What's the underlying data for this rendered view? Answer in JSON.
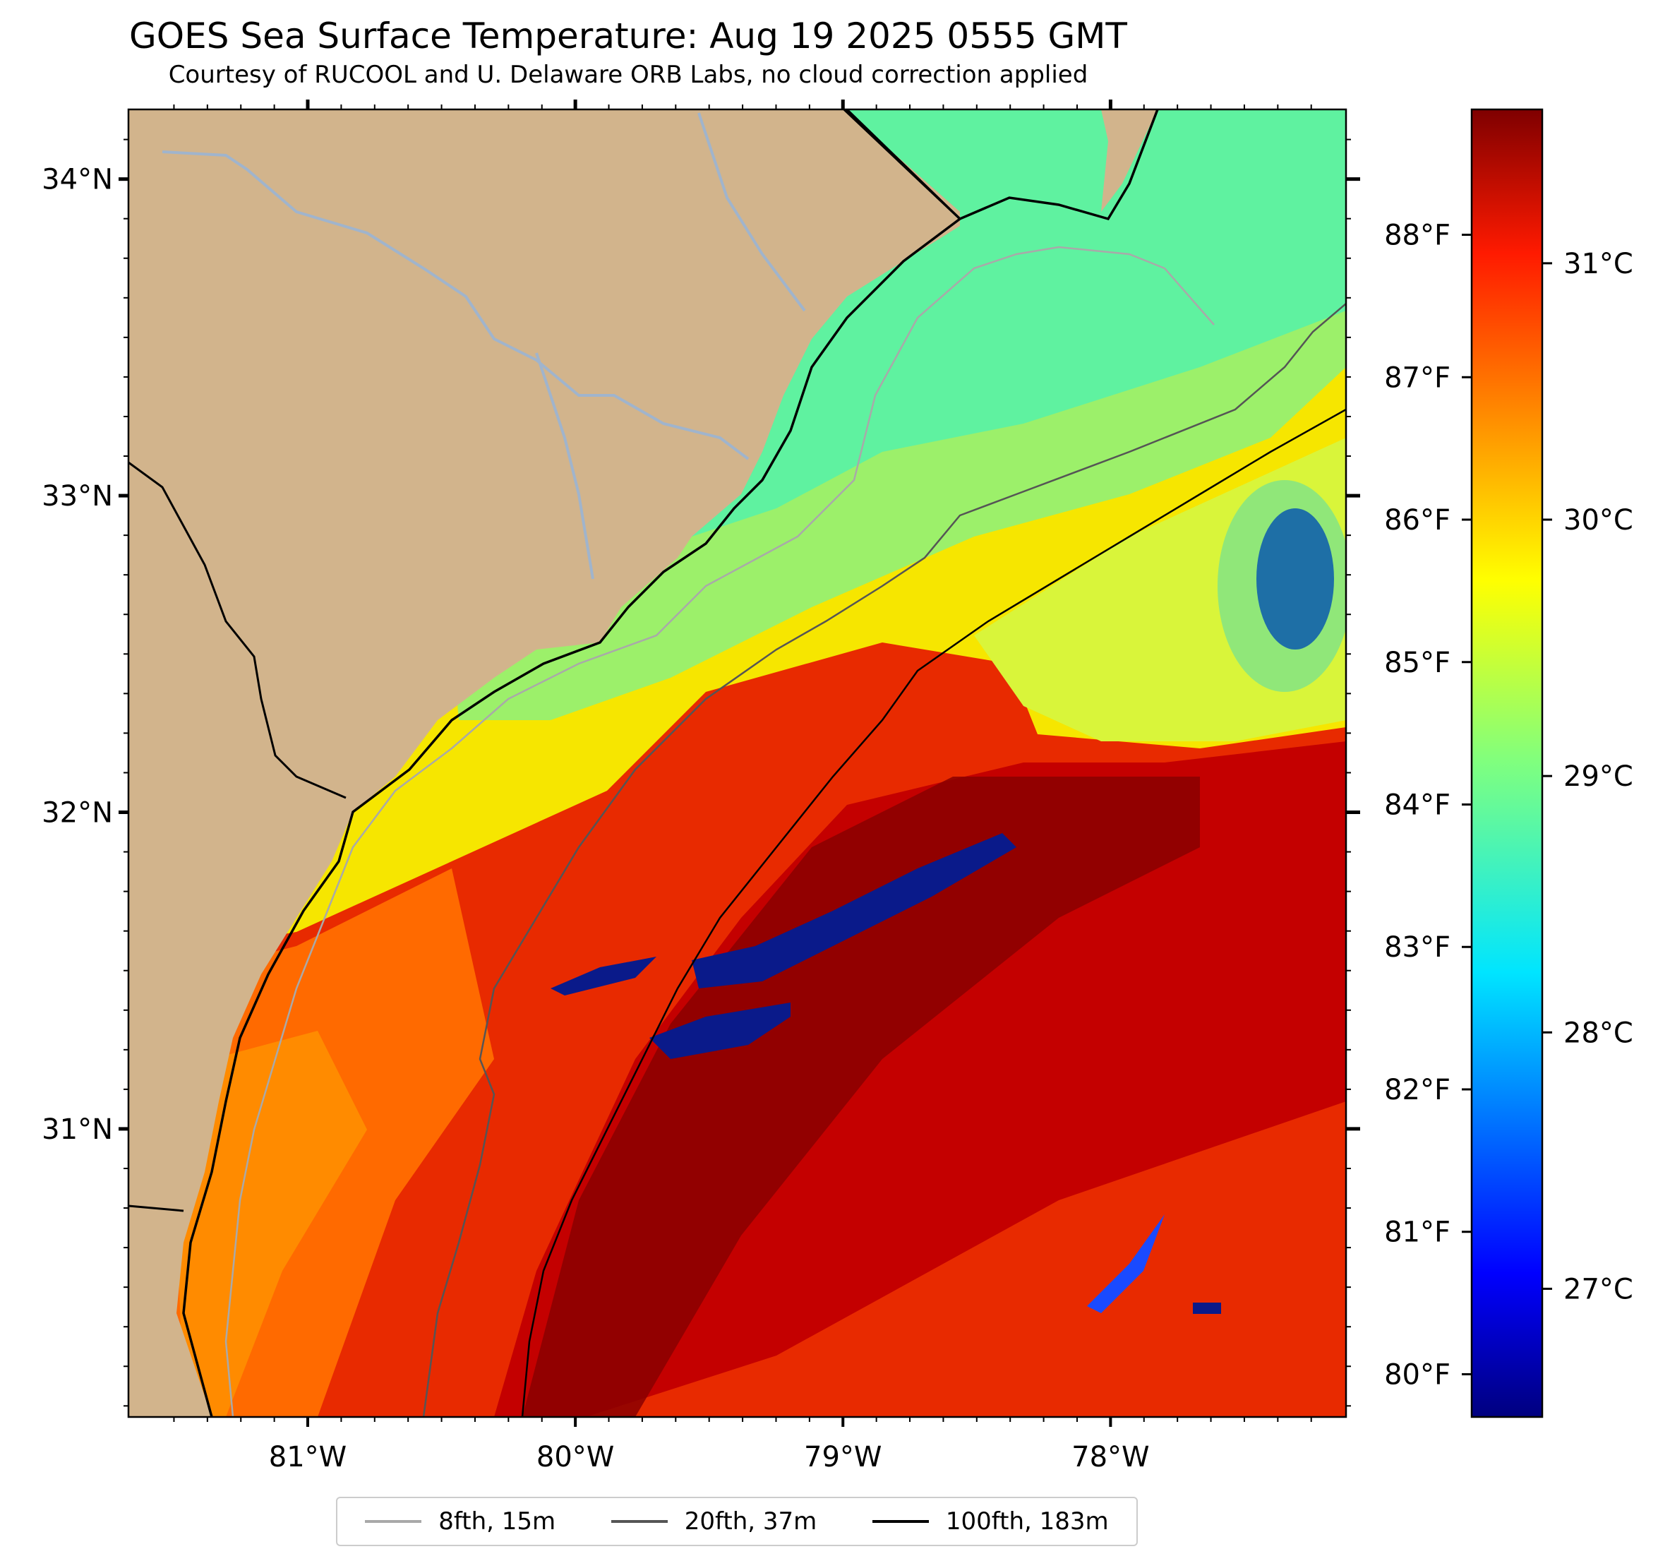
{
  "title": "GOES Sea Surface Temperature: Aug 19 2025 0555 GMT",
  "subtitle": "Courtesy of RUCOOL and U. Delaware ORB Labs, no cloud correction applied",
  "map": {
    "lon_range": [
      -81.67,
      -77.12
    ],
    "lat_range": [
      30.09,
      34.22
    ],
    "lon_ticks": [
      "81°W",
      "80°W",
      "79°W",
      "78°W"
    ],
    "lat_ticks": [
      "34°N",
      "33°N",
      "32°N",
      "31°N"
    ],
    "colors": {
      "land": "#d2b48c",
      "rivers": "#a0b4cc",
      "warm_core": "#800000",
      "cold_eddy": "#0a1a8a"
    }
  },
  "colorbar": {
    "min_c": 26.5,
    "max_c": 31.6,
    "celsius_ticks": [
      {
        "value": 27,
        "label": "27°C"
      },
      {
        "value": 28,
        "label": "28°C"
      },
      {
        "value": 29,
        "label": "29°C"
      },
      {
        "value": 30,
        "label": "30°C"
      },
      {
        "value": 31,
        "label": "31°C"
      }
    ],
    "fahrenheit_ticks": [
      {
        "value": 80,
        "label": "80°F"
      },
      {
        "value": 81,
        "label": "81°F"
      },
      {
        "value": 82,
        "label": "82°F"
      },
      {
        "value": 83,
        "label": "83°F"
      },
      {
        "value": 84,
        "label": "84°F"
      },
      {
        "value": 85,
        "label": "85°F"
      },
      {
        "value": 86,
        "label": "86°F"
      },
      {
        "value": 87,
        "label": "87°F"
      },
      {
        "value": 88,
        "label": "88°F"
      }
    ]
  },
  "legend": [
    {
      "label": "8fth, 15m",
      "color": "#a9a9a9"
    },
    {
      "label": "20fth, 37m",
      "color": "#555555"
    },
    {
      "label": "100fth, 183m",
      "color": "#000000"
    }
  ]
}
